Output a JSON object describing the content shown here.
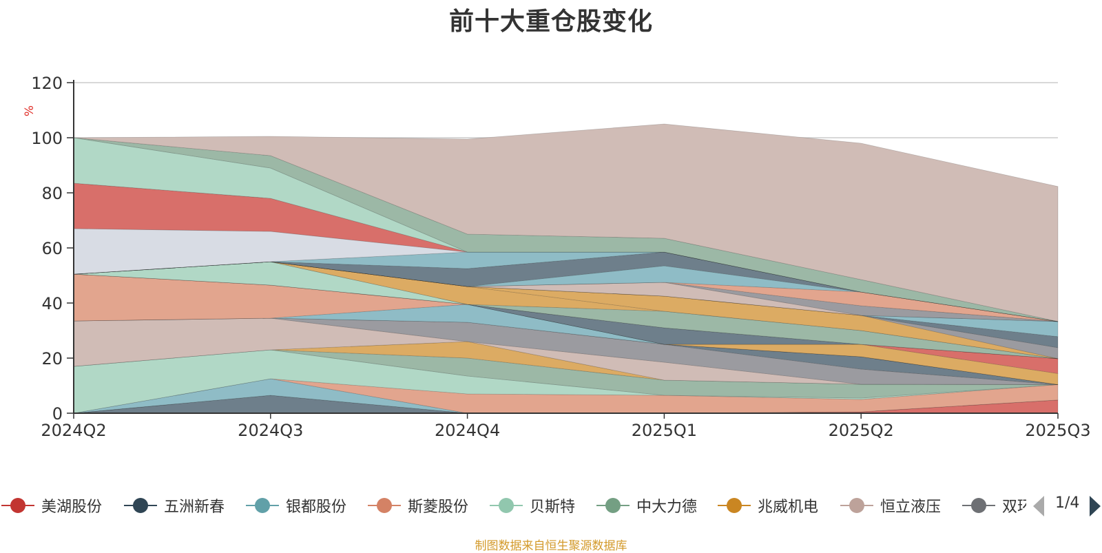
{
  "chart_data": {
    "type": "area",
    "title": "前十大重仓股变化",
    "ylabel": "%",
    "ylim": [
      0,
      120
    ],
    "yticks": [
      0,
      20,
      40,
      60,
      80,
      100,
      120
    ],
    "categories": [
      "2024Q2",
      "2024Q3",
      "2024Q4",
      "2025Q1",
      "2025Q2",
      "2025Q3"
    ],
    "stacked": true,
    "grid": true,
    "legend_position": "bottom",
    "series": [
      {
        "name": "五洲新春",
        "color": "#6e7f8b",
        "values": [
          0,
          6.5,
          0,
          0,
          0,
          0
        ]
      },
      {
        "name": "美湖股份",
        "color": "#d86f6a",
        "values": [
          0,
          0,
          0,
          0,
          0.5,
          4.8
        ]
      },
      {
        "name": "银都股份",
        "color": "#8fbcc6",
        "values": [
          0,
          6,
          0,
          0,
          0,
          0
        ]
      },
      {
        "name": "斯菱股份",
        "color": "#e2a58e",
        "values": [
          0,
          0,
          7,
          6.5,
          4.5,
          5.6
        ]
      },
      {
        "name": "贝斯特",
        "color": "#b1d8c6",
        "values": [
          17,
          10.5,
          6.5,
          0,
          0.5,
          0
        ]
      },
      {
        "name": "中大力德",
        "color": "#9cb8a6",
        "values": [
          0,
          0,
          6.5,
          5.5,
          5,
          0
        ]
      },
      {
        "name": "兆威机电",
        "color": "#dcab63",
        "values": [
          0,
          0,
          6,
          0,
          0,
          0
        ]
      },
      {
        "name": "恒立液压",
        "color": "#d0bcb6",
        "values": [
          16.5,
          11.5,
          0,
          6.5,
          0,
          0
        ]
      },
      {
        "name": "双环传动",
        "color": "#9b9ba0",
        "values": [
          0,
          0,
          7,
          6.5,
          5.5,
          0
        ]
      },
      {
        "name": "五洲新春",
        "color": "#6e7f8b",
        "values": [
          0,
          0,
          0,
          0,
          4.5,
          0
        ]
      },
      {
        "name": "银都股份",
        "color": "#8fbcc6",
        "values": [
          0,
          0,
          6.5,
          0,
          0,
          0
        ]
      },
      {
        "name": "斯菱股份",
        "color": "#e2a58e",
        "values": [
          17,
          12,
          0,
          0,
          0,
          0
        ]
      },
      {
        "name": "双环传动",
        "color": "#9b9ba0",
        "values": [
          0,
          0,
          0,
          0,
          0,
          0
        ]
      },
      {
        "name": "兆威机电",
        "color": "#dcab63",
        "values": [
          0,
          0,
          0,
          0,
          4.5,
          4
        ]
      },
      {
        "name": "美湖股份",
        "color": "#d86f6a",
        "values": [
          0,
          0,
          0,
          0,
          0,
          5.4
        ]
      },
      {
        "name": "五洲新春",
        "color": "#6e7f8b",
        "values": [
          0,
          0,
          0,
          6,
          0,
          0
        ]
      },
      {
        "name": "贝斯特",
        "color": "#b1d8c6",
        "values": [
          0,
          8.5,
          0,
          0,
          0,
          0
        ]
      },
      {
        "name": "恒立液压",
        "color": "#d0bcb6",
        "values": [
          0,
          0,
          0,
          0,
          0,
          0
        ]
      },
      {
        "name": "中大力德",
        "color": "#9cb8a6",
        "values": [
          0,
          0,
          0,
          6,
          5,
          0
        ]
      },
      {
        "name": "兆威机电",
        "color": "#dcab63",
        "values": [
          0,
          0,
          6.5,
          0,
          0,
          0
        ]
      },
      {
        "name": "兆威机电",
        "color": "#dcab63",
        "values": [
          0,
          0,
          0,
          5.5,
          5.5,
          0
        ]
      },
      {
        "name": "双环传动",
        "color": "#9b9ba0",
        "values": [
          0,
          0,
          0,
          0,
          0,
          4
        ]
      },
      {
        "name": "五洲新春",
        "color": "#6e7f8b",
        "values": [
          0,
          0,
          0,
          0,
          0,
          4
        ]
      },
      {
        "name": "银都股份",
        "color": "#8fbcc6",
        "values": [
          0,
          0,
          0,
          0,
          0,
          5.5
        ]
      },
      {
        "name": "恒立液压",
        "color": "#d0bcb6",
        "values": [
          0,
          0,
          0,
          5,
          0,
          0
        ]
      },
      {
        "name": "双环传动",
        "color": "#9b9ba0",
        "values": [
          0,
          0,
          0,
          0,
          3.5,
          0
        ]
      },
      {
        "name": "斯菱股份",
        "color": "#e2a58e",
        "values": [
          0,
          0,
          0,
          0,
          5,
          0
        ]
      },
      {
        "name": "银都股份",
        "color": "#8fbcc6",
        "values": [
          0,
          0,
          0,
          6,
          0,
          0
        ]
      },
      {
        "name": "五洲新春",
        "color": "#6e7f8b",
        "values": [
          0,
          0,
          6.5,
          5,
          0,
          0
        ]
      },
      {
        "name": "银都股份",
        "color": "#8fbcc6",
        "values": [
          0,
          0,
          6,
          0,
          0,
          0
        ]
      },
      {
        "name": "双环传动",
        "color": "#d8dce4",
        "values": [
          16.5,
          11,
          0,
          0,
          0,
          0
        ]
      },
      {
        "name": "美湖股份",
        "color": "#d86f6a",
        "values": [
          16.5,
          12,
          0,
          0,
          0,
          0
        ]
      },
      {
        "name": "贝斯特",
        "color": "#b1d8c6",
        "values": [
          16.5,
          11,
          0,
          0,
          0,
          0
        ]
      },
      {
        "name": "中大力德",
        "color": "#9cb8a6",
        "values": [
          0,
          4.5,
          6.5,
          5,
          4.5,
          0
        ]
      },
      {
        "name": "恒立液压",
        "color": "#d0bcb6",
        "values": [
          0,
          7,
          34.5,
          41.5,
          49.5,
          49
        ]
      }
    ]
  },
  "legend": {
    "items": [
      {
        "name": "美湖股份",
        "color": "#c23531"
      },
      {
        "name": "五洲新春",
        "color": "#2f4554"
      },
      {
        "name": "银都股份",
        "color": "#61a0a8"
      },
      {
        "name": "斯菱股份",
        "color": "#d48265"
      },
      {
        "name": "贝斯特",
        "color": "#91c7ae"
      },
      {
        "name": "中大力德",
        "color": "#749f83"
      },
      {
        "name": "兆威机电",
        "color": "#ca8622"
      },
      {
        "name": "恒立液压",
        "color": "#bda29a"
      },
      {
        "name": "双环传动",
        "color": "#6e7074"
      }
    ],
    "page": "1/4"
  },
  "source_note": "制图数据来自恒生聚源数据库"
}
